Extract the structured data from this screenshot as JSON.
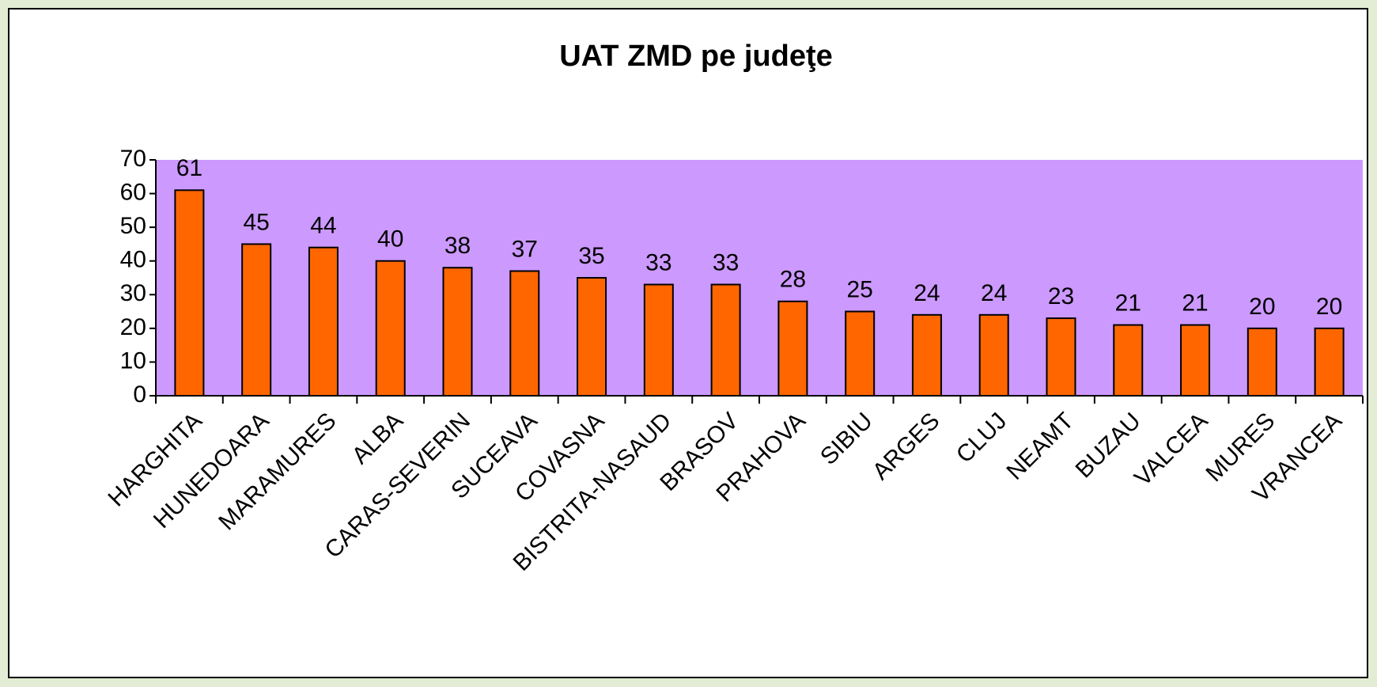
{
  "chart_data": {
    "type": "bar",
    "title": "UAT ZMD pe judeţe",
    "categories": [
      "HARGHITA",
      "HUNEDOARA",
      "MARAMURES",
      "ALBA",
      "CARAS-SEVERIN",
      "SUCEAVA",
      "COVASNA",
      "BISTRITA-NASAUD",
      "BRASOV",
      "PRAHOVA",
      "SIBIU",
      "ARGES",
      "CLUJ",
      "NEAMT",
      "BUZAU",
      "VALCEA",
      "MURES",
      "VRANCEA"
    ],
    "values": [
      61,
      45,
      44,
      40,
      38,
      37,
      35,
      33,
      33,
      28,
      25,
      24,
      24,
      23,
      21,
      21,
      20,
      20
    ],
    "color": "#ff6600",
    "plot_background": "#cc99ff",
    "ylim": [
      0,
      70
    ],
    "yticks": [
      0,
      10,
      20,
      30,
      40,
      50,
      60,
      70
    ]
  }
}
